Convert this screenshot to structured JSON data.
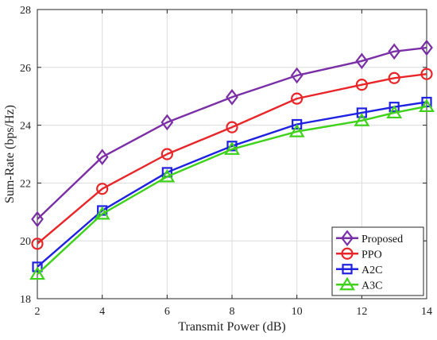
{
  "chart_data": {
    "type": "line",
    "title": "",
    "xlabel": "Transmit Power (dB)",
    "ylabel": "Sum-Rate (bps/Hz)",
    "xlim": [
      2,
      14
    ],
    "ylim": [
      18,
      28
    ],
    "xticks": [
      2,
      4,
      6,
      8,
      10,
      12,
      14
    ],
    "yticks": [
      18,
      20,
      22,
      24,
      26,
      28
    ],
    "grid": true,
    "legend_position": "bottom-right",
    "x": [
      2,
      4,
      6,
      8,
      10,
      12,
      13,
      14
    ],
    "series": [
      {
        "name": "Proposed",
        "marker": "diamond",
        "color": "#7B2FA6",
        "values": [
          20.75,
          22.9,
          24.1,
          24.97,
          25.72,
          26.22,
          26.55,
          26.68
        ]
      },
      {
        "name": "PPO",
        "marker": "circle",
        "color": "#E8262A",
        "values": [
          19.9,
          21.8,
          23.0,
          23.93,
          24.92,
          25.4,
          25.63,
          25.77
        ]
      },
      {
        "name": "A2C",
        "marker": "square",
        "color": "#1F22E0",
        "values": [
          19.1,
          21.05,
          22.37,
          23.28,
          24.03,
          24.43,
          24.63,
          24.8
        ]
      },
      {
        "name": "A3C",
        "marker": "triangle",
        "color": "#3ED21B",
        "values": [
          18.85,
          20.93,
          22.22,
          23.17,
          23.78,
          24.16,
          24.43,
          24.65
        ]
      }
    ]
  }
}
